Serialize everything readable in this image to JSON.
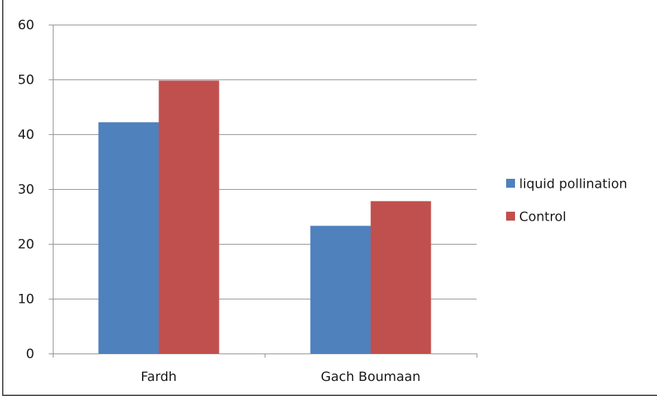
{
  "chart_data": {
    "type": "bar",
    "categories": [
      "Fardh",
      "Gach Boumaan"
    ],
    "series": [
      {
        "name": "liquid pollination",
        "values": [
          42.2,
          23.3
        ],
        "color": "#4f81bd"
      },
      {
        "name": "Control",
        "values": [
          49.8,
          27.8
        ],
        "color": "#c0504d"
      }
    ],
    "ylim": [
      0,
      60
    ],
    "yticks": [
      0,
      10,
      20,
      30,
      40,
      50,
      60
    ],
    "grid": true,
    "legend_position": "right",
    "title": "",
    "xlabel": "",
    "ylabel": ""
  },
  "colors": {
    "border": "#555555",
    "gridline": "#8c8c8c",
    "axis": "#8c8c8c"
  }
}
